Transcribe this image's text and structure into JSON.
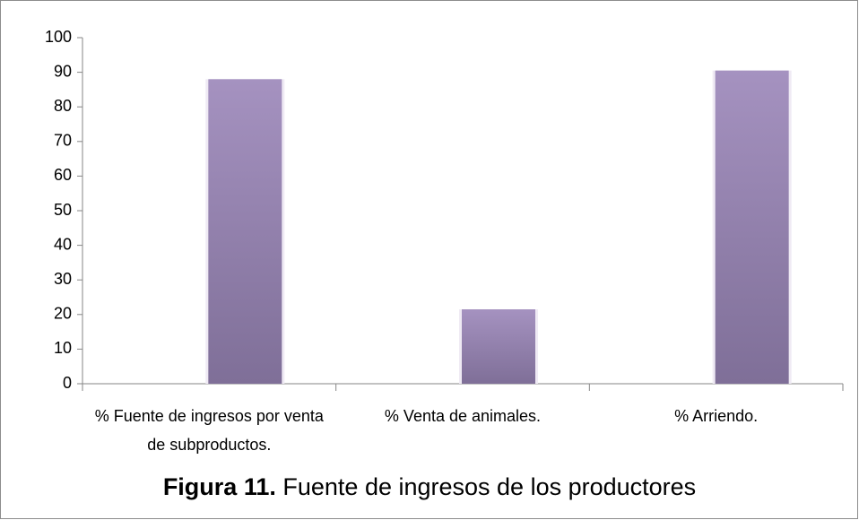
{
  "chart_data": {
    "type": "bar",
    "title_label": "Figura 11.",
    "title": "Fuente de ingresos de los productores",
    "categories": [
      "% Fuente de ingresos por venta de subproductos.",
      "% Venta de animales.",
      "% Arriendo."
    ],
    "values": [
      88,
      21.5,
      90.5
    ],
    "color": "#a592c0",
    "ylim": [
      0,
      100
    ],
    "yticks": [
      0,
      10,
      20,
      30,
      40,
      50,
      60,
      70,
      80,
      90,
      100
    ],
    "grid": false
  }
}
